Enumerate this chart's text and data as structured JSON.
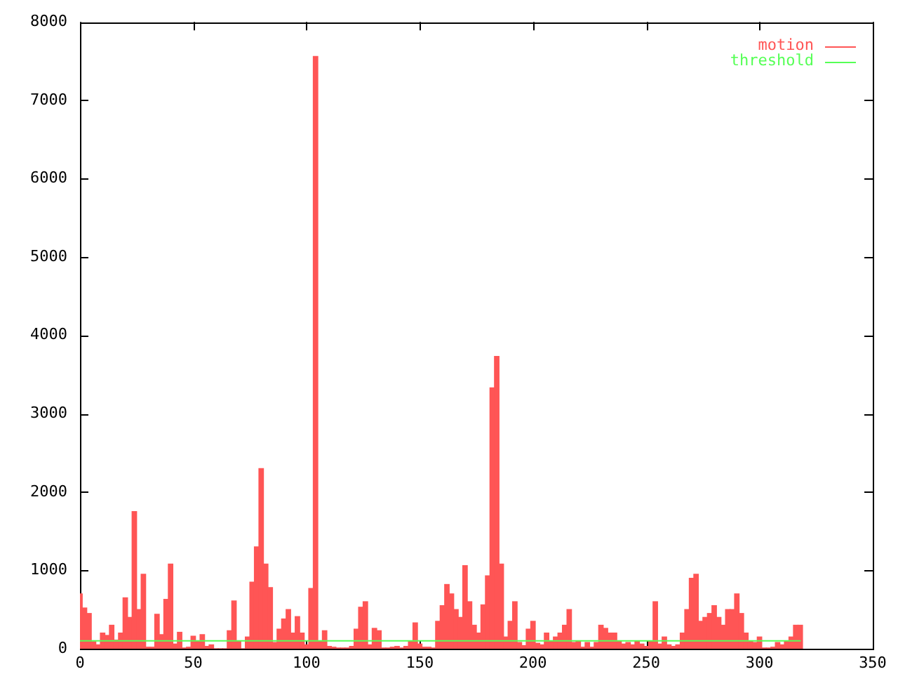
{
  "chart_data": {
    "type": "bar",
    "legend": "top right",
    "xlim": [
      0,
      350
    ],
    "xticks": [
      0,
      50,
      100,
      150,
      200,
      250,
      300,
      350
    ],
    "ylim": [
      0,
      8000
    ],
    "yticks": [
      0,
      1000,
      2000,
      3000,
      4000,
      5000,
      6000,
      7000,
      8000
    ],
    "x": [
      0,
      2,
      4,
      6,
      8,
      10,
      12,
      14,
      16,
      18,
      20,
      22,
      24,
      26,
      28,
      30,
      32,
      34,
      36,
      38,
      40,
      42,
      44,
      46,
      48,
      50,
      52,
      54,
      56,
      58,
      60,
      62,
      64,
      66,
      68,
      70,
      72,
      74,
      76,
      78,
      80,
      82,
      84,
      86,
      88,
      90,
      92,
      94,
      96,
      98,
      100,
      102,
      104,
      106,
      108,
      110,
      112,
      114,
      116,
      118,
      120,
      122,
      124,
      126,
      128,
      130,
      132,
      134,
      136,
      138,
      140,
      142,
      144,
      146,
      148,
      150,
      152,
      154,
      156,
      158,
      160,
      162,
      164,
      166,
      168,
      170,
      172,
      174,
      176,
      178,
      180,
      182,
      184,
      186,
      188,
      190,
      192,
      194,
      196,
      198,
      200,
      202,
      204,
      206,
      208,
      210,
      212,
      214,
      216,
      218,
      220,
      222,
      224,
      226,
      228,
      230,
      232,
      234,
      236,
      238,
      240,
      242,
      244,
      246,
      248,
      250,
      252,
      254,
      256,
      258,
      260,
      262,
      264,
      266,
      268,
      270,
      272,
      274,
      276,
      278,
      280,
      282,
      284,
      286,
      288,
      290,
      292,
      294,
      296,
      298,
      300,
      302,
      304,
      306,
      308,
      310,
      312,
      314,
      316,
      318
    ],
    "series": [
      {
        "name": "motion",
        "color": "#ff5555",
        "values": [
          700,
          520,
          450,
          90,
          50,
          200,
          170,
          300,
          110,
          200,
          650,
          400,
          1750,
          500,
          950,
          20,
          20,
          440,
          180,
          630,
          1080,
          60,
          210,
          10,
          20,
          160,
          100,
          180,
          30,
          50,
          0,
          0,
          0,
          230,
          610,
          100,
          0,
          150,
          850,
          1300,
          2300,
          1080,
          780,
          80,
          250,
          380,
          500,
          200,
          410,
          200,
          50,
          770,
          7560,
          100,
          230,
          30,
          20,
          10,
          10,
          10,
          30,
          250,
          530,
          600,
          50,
          260,
          230,
          10,
          10,
          20,
          30,
          10,
          30,
          100,
          330,
          60,
          20,
          20,
          10,
          350,
          550,
          820,
          700,
          500,
          400,
          1060,
          600,
          300,
          200,
          560,
          930,
          3330,
          3730,
          1080,
          150,
          350,
          600,
          80,
          40,
          250,
          350,
          70,
          50,
          200,
          100,
          150,
          200,
          300,
          500,
          80,
          100,
          20,
          80,
          20,
          80,
          300,
          260,
          200,
          200,
          100,
          60,
          80,
          50,
          100,
          60,
          30,
          100,
          600,
          60,
          150,
          50,
          30,
          50,
          200,
          500,
          900,
          950,
          350,
          400,
          450,
          550,
          400,
          300,
          500,
          500,
          700,
          450,
          200,
          100,
          80,
          150,
          10,
          10,
          20,
          80,
          50,
          100,
          150,
          300,
          300
        ]
      },
      {
        "name": "threshold",
        "type": "line",
        "color": "#55ff55",
        "x": [
          0,
          318
        ],
        "values": [
          100,
          100
        ]
      }
    ]
  }
}
